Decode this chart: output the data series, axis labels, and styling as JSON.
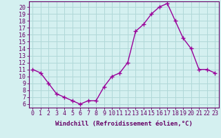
{
  "x": [
    0,
    1,
    2,
    3,
    4,
    5,
    6,
    7,
    8,
    9,
    10,
    11,
    12,
    13,
    14,
    15,
    16,
    17,
    18,
    19,
    20,
    21,
    22,
    23
  ],
  "y": [
    11,
    10.5,
    9,
    7.5,
    7,
    6.5,
    6,
    6.5,
    6.5,
    8.5,
    10,
    10.5,
    12,
    16.5,
    17.5,
    19,
    20,
    20.5,
    18,
    15.5,
    14,
    11,
    11,
    10.5
  ],
  "line_color": "#990099",
  "marker": "+",
  "marker_size": 4,
  "marker_linewidth": 1.0,
  "line_width": 1.0,
  "bg_color": "#d4f0f0",
  "grid_color": "#b0d8d8",
  "xlabel": "Windchill (Refroidissement éolien,°C)",
  "xlabel_fontsize": 6.5,
  "xtick_labels": [
    "0",
    "1",
    "2",
    "3",
    "4",
    "5",
    "6",
    "7",
    "8",
    "9",
    "10",
    "11",
    "12",
    "13",
    "14",
    "15",
    "16",
    "17",
    "18",
    "19",
    "20",
    "21",
    "22",
    "23"
  ],
  "ytick_min": 6,
  "ytick_max": 20,
  "ytick_step": 1,
  "ylim": [
    5.5,
    20.8
  ],
  "xlim": [
    -0.5,
    23.5
  ],
  "tick_fontsize": 6.0,
  "spine_color": "#660066",
  "label_color": "#660066"
}
